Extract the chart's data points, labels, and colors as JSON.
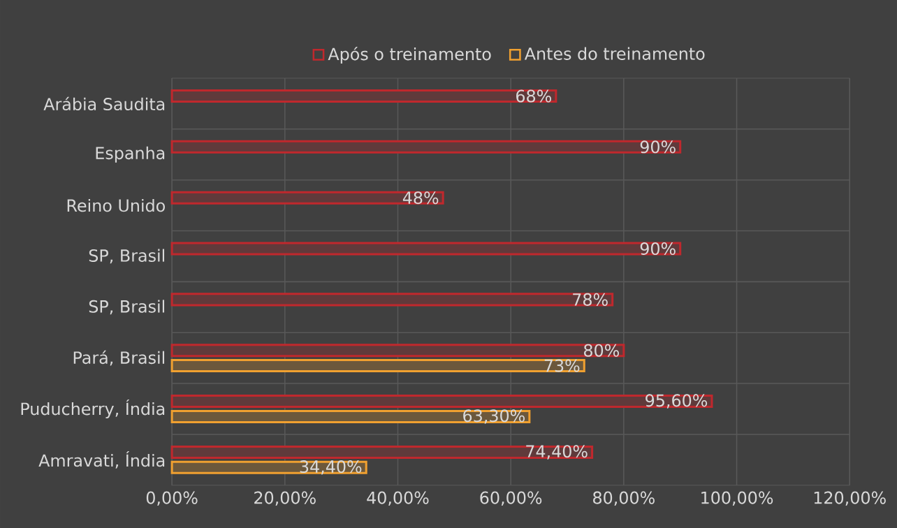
{
  "chart_data": {
    "type": "bar",
    "orientation": "horizontal",
    "categories": [
      "Arábia Saudita",
      "Espanha",
      "Reino Unido",
      "SP, Brasil",
      "SP, Brasil",
      "Pará, Brasil",
      "Puducherry, Índia",
      "Amravati, Índia"
    ],
    "series": [
      {
        "name": "Após o treinamento",
        "color": "#c0282d",
        "values": [
          68,
          90,
          48,
          90,
          78,
          80,
          95.6,
          74.4
        ],
        "value_labels": [
          "68%",
          "90%",
          "48%",
          "90%",
          "78%",
          "80%",
          "95,60%",
          "74,40%"
        ]
      },
      {
        "name": "Antes do treinamento",
        "color": "#f0a030",
        "values": [
          null,
          null,
          null,
          null,
          null,
          73,
          63.3,
          34.4
        ],
        "value_labels": [
          null,
          null,
          null,
          null,
          null,
          "73%",
          "63,30%",
          "34,40%"
        ]
      }
    ],
    "xlim": [
      0,
      120
    ],
    "xticks": [
      {
        "value": 0,
        "label": "0,00%"
      },
      {
        "value": 20,
        "label": "20,00%"
      },
      {
        "value": 40,
        "label": "40,00%"
      },
      {
        "value": 60,
        "label": "60,00%"
      },
      {
        "value": 80,
        "label": "80,00%"
      },
      {
        "value": 100,
        "label": "100,00%"
      },
      {
        "value": 120,
        "label": "120,00%"
      }
    ],
    "grid": true,
    "legend": "top"
  }
}
